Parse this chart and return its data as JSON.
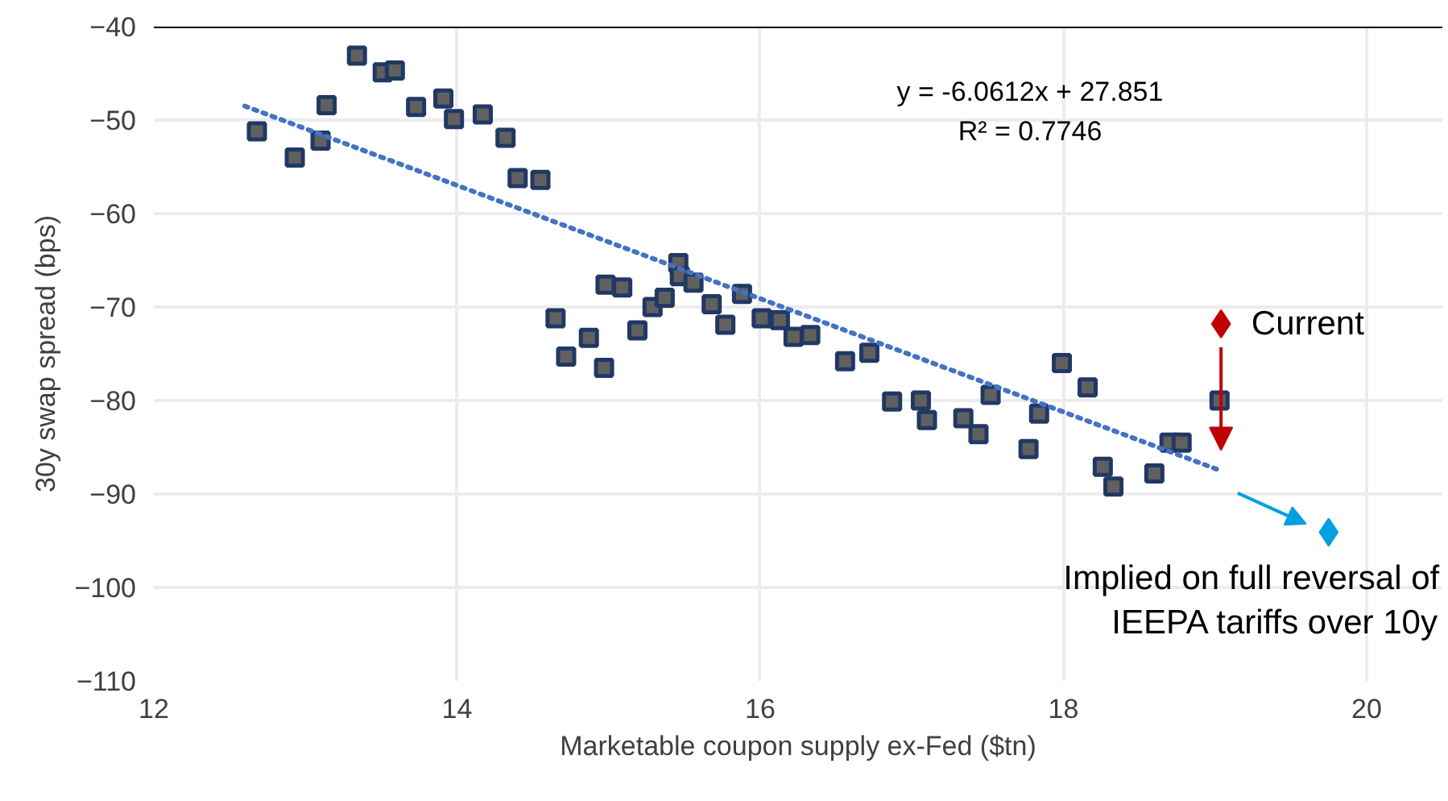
{
  "chart_data": {
    "type": "scatter",
    "xlabel": "Marketable coupon supply ex-Fed ($tn)",
    "ylabel": "30y swap spread (bps)",
    "xlim": [
      12,
      20.5
    ],
    "ylim": [
      -110,
      -40
    ],
    "xticks": [
      12,
      14,
      16,
      18,
      20
    ],
    "yticks": [
      -110,
      -100,
      -90,
      -80,
      -70,
      -60,
      -50,
      -40
    ],
    "grid": true,
    "marker": "square",
    "series": [
      {
        "color": "#203864",
        "x": [
          12.68,
          12.93,
          13.1,
          13.14,
          13.34,
          13.51,
          13.59,
          13.73,
          13.91,
          13.98,
          14.17,
          14.32,
          14.4,
          14.55,
          14.65,
          14.72,
          14.87,
          14.97,
          14.98,
          15.09,
          15.19,
          15.29,
          15.37,
          15.46,
          15.47,
          15.56,
          15.68,
          15.77,
          15.88,
          16.01,
          16.13,
          16.22,
          16.33,
          16.56,
          16.72,
          16.87,
          17.06,
          17.1,
          17.34,
          17.44,
          17.52,
          17.77,
          17.84,
          17.99,
          18.16,
          18.26,
          18.33,
          18.6,
          18.7,
          18.78,
          19.03
        ],
        "values": [
          -51.2,
          -54.0,
          -52.2,
          -48.4,
          -43.1,
          -44.9,
          -44.7,
          -48.6,
          -47.7,
          -49.9,
          -49.4,
          -51.9,
          -56.2,
          -56.4,
          -71.2,
          -75.3,
          -73.3,
          -76.5,
          -67.6,
          -67.9,
          -72.5,
          -70.0,
          -69.0,
          -65.3,
          -66.7,
          -67.4,
          -69.7,
          -71.9,
          -68.6,
          -71.2,
          -71.4,
          -73.2,
          -73.0,
          -75.8,
          -74.9,
          -80.1,
          -80.0,
          -82.1,
          -81.9,
          -83.6,
          -79.4,
          -85.2,
          -81.4,
          -76.0,
          -78.6,
          -87.1,
          -89.2,
          -87.8,
          -84.5,
          -84.5,
          -80.0
        ]
      },
      {
        "type": "line",
        "color": "#4472c4",
        "line_style": "dotted",
        "marker": "none",
        "x": [
          12.6,
          19.02
        ],
        "values": [
          -48.5,
          -87.4
        ]
      },
      {
        "name": "Current",
        "color": "#c00000",
        "marker": "diamond",
        "x": [
          19.04
        ],
        "values": [
          -71.8
        ]
      },
      {
        "name": "Implied on full reversal of\nIEEPA tariffs over 10y",
        "color": "#00a0e0",
        "marker": "diamond",
        "x": [
          19.75
        ],
        "values": [
          -94.1
        ]
      }
    ],
    "annotations": [
      "y = -6.0612x + 27.851",
      "R² = 0.7746"
    ]
  }
}
